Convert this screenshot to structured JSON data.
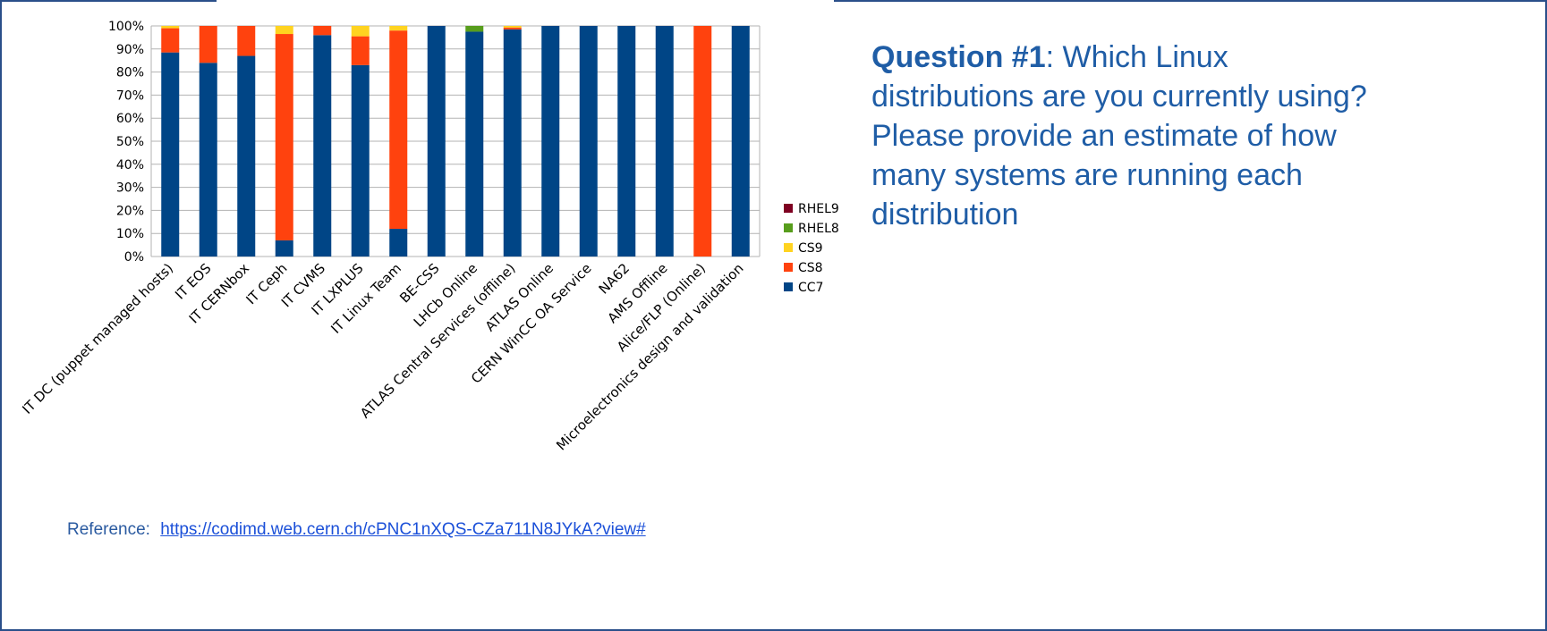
{
  "question": {
    "label": "Question #1",
    "text": ": Which Linux distributions are you currently using? Please provide an estimate of how many systems are running each distribution"
  },
  "reference": {
    "label": "Reference:",
    "url": "https://codimd.web.cern.ch/cPNC1nXQS-CZa711N8JYkA?view#"
  },
  "chart_data": {
    "type": "bar",
    "stacked": true,
    "percent_stacked": true,
    "categories": [
      "IT DC (puppet managed hosts)",
      "IT EOS",
      "IT CERNbox",
      "IT Ceph",
      "IT CVMS",
      "IT LXPLUS",
      "IT Linux Team",
      "BE-CSS",
      "LHCb Online",
      "ATLAS Central Services (offline)",
      "ATLAS Online",
      "CERN WinCC OA Service",
      "NA62",
      "AMS Offline",
      "Alice/FLP (Online)",
      "Microelectronics design and validation"
    ],
    "series": [
      {
        "name": "CC7",
        "color": "#004586",
        "values": [
          88.5,
          84,
          87,
          7,
          96,
          83,
          12,
          100,
          97.5,
          98.5,
          100,
          100,
          100,
          100,
          0,
          100
        ]
      },
      {
        "name": "CS8",
        "color": "#ff420e",
        "values": [
          10.5,
          16,
          13,
          89.5,
          4,
          12.5,
          86,
          0,
          0,
          0.8,
          0,
          0,
          0,
          0,
          100,
          0
        ]
      },
      {
        "name": "CS9",
        "color": "#ffd320",
        "values": [
          1,
          0,
          0,
          3.5,
          0,
          4.5,
          2,
          0,
          0,
          0.7,
          0,
          0,
          0,
          0,
          0,
          0
        ]
      },
      {
        "name": "RHEL8",
        "color": "#579d1c",
        "values": [
          0,
          0,
          0,
          0,
          0,
          0,
          0,
          0,
          2.5,
          0,
          0,
          0,
          0,
          0,
          0,
          0
        ]
      },
      {
        "name": "RHEL9",
        "color": "#7e0021",
        "values": [
          0,
          0,
          0,
          0,
          0,
          0,
          0,
          0,
          0,
          0,
          0,
          0,
          0,
          0,
          0,
          0
        ]
      }
    ],
    "legend_order": [
      "RHEL9",
      "RHEL8",
      "CS9",
      "CS8",
      "CC7"
    ],
    "legend_position": "right",
    "yticks": [
      "0%",
      "10%",
      "20%",
      "30%",
      "40%",
      "50%",
      "60%",
      "70%",
      "80%",
      "90%",
      "100%"
    ],
    "ylim": [
      0,
      100
    ],
    "grid": true,
    "xlabel": "",
    "ylabel": "",
    "title": ""
  }
}
